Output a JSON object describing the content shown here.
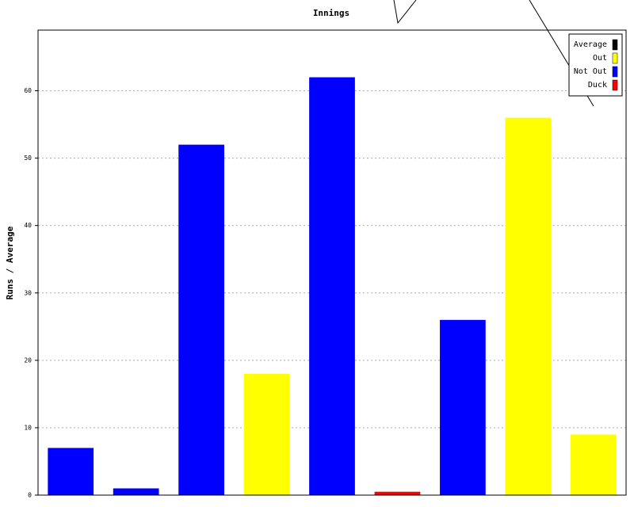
{
  "chart_data": {
    "type": "bar",
    "title": "Innings",
    "y_label": "Runs / Average",
    "categories": [
      null,
      null,
      null,
      null,
      null,
      null,
      null,
      null,
      null
    ],
    "series": [
      {
        "name": "Average",
        "color": "#000000",
        "values": [
          null,
          null,
          null,
          null,
          null,
          null,
          null,
          null,
          null
        ]
      },
      {
        "name": "Out",
        "color": "#ffff00",
        "values": [
          null,
          null,
          null,
          18,
          null,
          null,
          null,
          56,
          9
        ]
      },
      {
        "name": "Not Out",
        "color": "#0000ff",
        "values": [
          7,
          1,
          52,
          null,
          62,
          null,
          26,
          null,
          null
        ]
      },
      {
        "name": "Duck",
        "color": "#ff0000",
        "values": [
          null,
          null,
          null,
          null,
          null,
          0.5,
          null,
          null,
          null
        ]
      }
    ],
    "ylim": [
      0,
      69
    ],
    "yticks": [
      0,
      10,
      20,
      30,
      40,
      50,
      60
    ],
    "grid": true,
    "legend": "top-right"
  }
}
